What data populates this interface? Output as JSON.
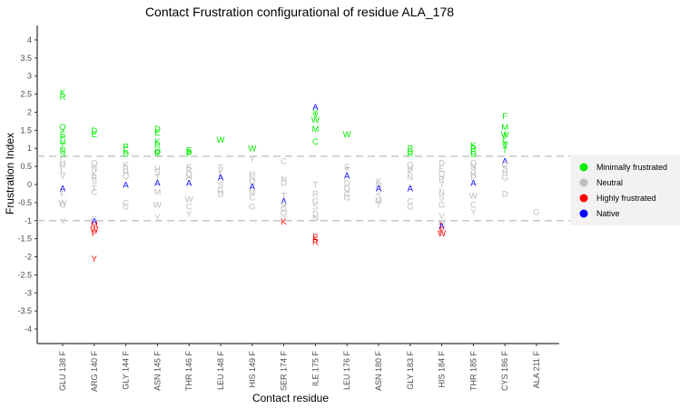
{
  "chart_data": {
    "type": "scatter",
    "title": "Contact Frustration configurational of residue ALA_178",
    "xlabel": "Contact residue",
    "ylabel": "Frustration Index",
    "ylim": [
      -4.4,
      4.4
    ],
    "yticks": [
      "4",
      "3.5",
      "3",
      "2.5",
      "2",
      "1.5",
      "1",
      "0.5",
      "0",
      "-0.5",
      "-1",
      "-1.5",
      "-2",
      "-2.5",
      "-3",
      "-3.5",
      "-4"
    ],
    "ytick_values": [
      4,
      3.5,
      3,
      2.5,
      2,
      1.5,
      1,
      0.5,
      0,
      -0.5,
      -1,
      -1.5,
      -2,
      -2.5,
      -3,
      -3.5,
      -4
    ],
    "categories": [
      "GLU 138 F",
      "ARG 140 F",
      "GLY 144 F",
      "ASN 145 F",
      "THR 146 F",
      "LEU 148 F",
      "HIS 149 F",
      "SER 174 F",
      "ILE 175 F",
      "LEU 176 F",
      "ASN 180 F",
      "GLY 183 F",
      "HIS 184 F",
      "THR 185 F",
      "CYS 186 F",
      "ALA 211 F"
    ],
    "reference_lines": [
      0.78,
      -1.0
    ],
    "grid": false,
    "legend_position": "right",
    "legend": [
      {
        "label": "Minimally frustrated",
        "color": "#00ee00"
      },
      {
        "label": "Neutral",
        "color": "#bebebe"
      },
      {
        "label": "Highly frustrated",
        "color": "#ff0000"
      },
      {
        "label": "Native",
        "color": "#0000ff"
      }
    ],
    "colors": {
      "minimal": "#00ee00",
      "neutral": "#bebebe",
      "high": "#ff0000",
      "native": "#0000ff"
    },
    "points": [
      {
        "x": 0,
        "y": 2.55,
        "t": "K",
        "c": "minimal"
      },
      {
        "x": 0,
        "y": 2.43,
        "t": "R",
        "c": "minimal"
      },
      {
        "x": 0,
        "y": 1.6,
        "t": "Q",
        "c": "minimal"
      },
      {
        "x": 0,
        "y": 1.4,
        "t": "E",
        "c": "minimal"
      },
      {
        "x": 0,
        "y": 1.32,
        "t": "P",
        "c": "minimal"
      },
      {
        "x": 0,
        "y": 1.2,
        "t": "H",
        "c": "minimal"
      },
      {
        "x": 0,
        "y": 1.08,
        "t": "T",
        "c": "minimal"
      },
      {
        "x": 0,
        "y": 0.95,
        "t": "N",
        "c": "minimal"
      },
      {
        "x": 0,
        "y": 0.85,
        "t": "S",
        "c": "minimal"
      },
      {
        "x": 0,
        "y": 0.7,
        "t": "C",
        "c": "neutral"
      },
      {
        "x": 0,
        "y": 0.55,
        "t": "M",
        "c": "neutral"
      },
      {
        "x": 0,
        "y": 0.4,
        "t": "L",
        "c": "neutral"
      },
      {
        "x": 0,
        "y": 0.25,
        "t": "V",
        "c": "neutral"
      },
      {
        "x": 0,
        "y": -0.1,
        "t": "A",
        "c": "native"
      },
      {
        "x": 0,
        "y": -0.25,
        "t": "F",
        "c": "neutral"
      },
      {
        "x": 0,
        "y": -0.5,
        "t": "W",
        "c": "neutral"
      },
      {
        "x": 0,
        "y": -0.55,
        "t": "G",
        "c": "neutral"
      },
      {
        "x": 0,
        "y": -1.0,
        "t": "Y",
        "c": "neutral"
      },
      {
        "x": 1,
        "y": 1.5,
        "t": "D",
        "c": "minimal"
      },
      {
        "x": 1,
        "y": 1.4,
        "t": "E",
        "c": "minimal"
      },
      {
        "x": 1,
        "y": 0.6,
        "t": "Q",
        "c": "neutral"
      },
      {
        "x": 1,
        "y": 0.45,
        "t": "N",
        "c": "neutral"
      },
      {
        "x": 1,
        "y": 0.3,
        "t": "K",
        "c": "neutral"
      },
      {
        "x": 1,
        "y": 0.2,
        "t": "R",
        "c": "neutral"
      },
      {
        "x": 1,
        "y": 0.1,
        "t": "S",
        "c": "neutral"
      },
      {
        "x": 1,
        "y": -0.1,
        "t": "T",
        "c": "neutral"
      },
      {
        "x": 1,
        "y": -0.2,
        "t": "C",
        "c": "neutral"
      },
      {
        "x": 1,
        "y": -0.95,
        "t": "G",
        "c": "neutral"
      },
      {
        "x": 1,
        "y": -1.0,
        "t": "A",
        "c": "native"
      },
      {
        "x": 1,
        "y": -1.1,
        "t": "M",
        "c": "high"
      },
      {
        "x": 1,
        "y": -1.25,
        "t": "W",
        "c": "high"
      },
      {
        "x": 1,
        "y": -1.35,
        "t": "F",
        "c": "high"
      },
      {
        "x": 1,
        "y": -2.05,
        "t": "Y",
        "c": "high"
      },
      {
        "x": 2,
        "y": 1.05,
        "t": "P",
        "c": "minimal"
      },
      {
        "x": 2,
        "y": 0.95,
        "t": "E",
        "c": "minimal"
      },
      {
        "x": 2,
        "y": 0.85,
        "t": "D",
        "c": "minimal"
      },
      {
        "x": 2,
        "y": 0.55,
        "t": "K",
        "c": "neutral"
      },
      {
        "x": 2,
        "y": 0.45,
        "t": "R",
        "c": "neutral"
      },
      {
        "x": 2,
        "y": 0.35,
        "t": "H",
        "c": "neutral"
      },
      {
        "x": 2,
        "y": 0.25,
        "t": "Q",
        "c": "neutral"
      },
      {
        "x": 2,
        "y": 0.0,
        "t": "A",
        "c": "native"
      },
      {
        "x": 2,
        "y": -0.5,
        "t": "C",
        "c": "neutral"
      },
      {
        "x": 2,
        "y": -0.6,
        "t": "G",
        "c": "neutral"
      },
      {
        "x": 3,
        "y": 1.55,
        "t": "D",
        "c": "minimal"
      },
      {
        "x": 3,
        "y": 1.45,
        "t": "E",
        "c": "minimal"
      },
      {
        "x": 3,
        "y": 1.2,
        "t": "K",
        "c": "minimal"
      },
      {
        "x": 3,
        "y": 1.1,
        "t": "R",
        "c": "minimal"
      },
      {
        "x": 3,
        "y": 0.92,
        "t": "Q",
        "c": "minimal"
      },
      {
        "x": 3,
        "y": 0.88,
        "t": "P",
        "c": "minimal"
      },
      {
        "x": 3,
        "y": 0.45,
        "t": "H",
        "c": "neutral"
      },
      {
        "x": 3,
        "y": 0.35,
        "t": "S",
        "c": "neutral"
      },
      {
        "x": 3,
        "y": 0.2,
        "t": "T",
        "c": "neutral"
      },
      {
        "x": 3,
        "y": 0.05,
        "t": "A",
        "c": "native"
      },
      {
        "x": 3,
        "y": -0.2,
        "t": "M",
        "c": "neutral"
      },
      {
        "x": 3,
        "y": -0.55,
        "t": "W",
        "c": "neutral"
      },
      {
        "x": 3,
        "y": -0.9,
        "t": "Y",
        "c": "neutral"
      },
      {
        "x": 4,
        "y": 0.95,
        "t": "E",
        "c": "minimal"
      },
      {
        "x": 4,
        "y": 0.9,
        "t": "D",
        "c": "minimal"
      },
      {
        "x": 4,
        "y": 0.85,
        "t": "P",
        "c": "minimal"
      },
      {
        "x": 4,
        "y": 0.5,
        "t": "K",
        "c": "neutral"
      },
      {
        "x": 4,
        "y": 0.4,
        "t": "R",
        "c": "neutral"
      },
      {
        "x": 4,
        "y": 0.3,
        "t": "Q",
        "c": "neutral"
      },
      {
        "x": 4,
        "y": 0.2,
        "t": "H",
        "c": "neutral"
      },
      {
        "x": 4,
        "y": 0.05,
        "t": "A",
        "c": "native"
      },
      {
        "x": 4,
        "y": -0.4,
        "t": "W",
        "c": "neutral"
      },
      {
        "x": 4,
        "y": -0.6,
        "t": "C",
        "c": "neutral"
      },
      {
        "x": 4,
        "y": -0.8,
        "t": "Y",
        "c": "neutral"
      },
      {
        "x": 5,
        "y": 1.25,
        "t": "W",
        "c": "minimal"
      },
      {
        "x": 5,
        "y": 0.5,
        "t": "Y",
        "c": "neutral"
      },
      {
        "x": 5,
        "y": 0.4,
        "t": "V",
        "c": "neutral"
      },
      {
        "x": 5,
        "y": 0.3,
        "t": "L",
        "c": "neutral"
      },
      {
        "x": 5,
        "y": 0.2,
        "t": "A",
        "c": "native"
      },
      {
        "x": 5,
        "y": 0.0,
        "t": "S",
        "c": "neutral"
      },
      {
        "x": 5,
        "y": -0.15,
        "t": "G",
        "c": "neutral"
      },
      {
        "x": 5,
        "y": -0.25,
        "t": "D",
        "c": "neutral"
      },
      {
        "x": 6,
        "y": 1.0,
        "t": "W",
        "c": "minimal"
      },
      {
        "x": 6,
        "y": 0.7,
        "t": "Y",
        "c": "neutral"
      },
      {
        "x": 6,
        "y": 0.3,
        "t": "H",
        "c": "neutral"
      },
      {
        "x": 6,
        "y": 0.2,
        "t": "N",
        "c": "neutral"
      },
      {
        "x": 6,
        "y": 0.1,
        "t": "Q",
        "c": "neutral"
      },
      {
        "x": 6,
        "y": -0.05,
        "t": "A",
        "c": "native"
      },
      {
        "x": 6,
        "y": -0.2,
        "t": "M",
        "c": "neutral"
      },
      {
        "x": 6,
        "y": -0.35,
        "t": "C",
        "c": "neutral"
      },
      {
        "x": 6,
        "y": -0.6,
        "t": "G",
        "c": "neutral"
      },
      {
        "x": 7,
        "y": 0.65,
        "t": "C",
        "c": "neutral"
      },
      {
        "x": 7,
        "y": 0.15,
        "t": "N",
        "c": "neutral"
      },
      {
        "x": 7,
        "y": 0.05,
        "t": "D",
        "c": "neutral"
      },
      {
        "x": 7,
        "y": -0.3,
        "t": "T",
        "c": "neutral"
      },
      {
        "x": 7,
        "y": -0.45,
        "t": "A",
        "c": "native"
      },
      {
        "x": 7,
        "y": -0.55,
        "t": "S",
        "c": "neutral"
      },
      {
        "x": 7,
        "y": -0.65,
        "t": "G",
        "c": "neutral"
      },
      {
        "x": 7,
        "y": -0.78,
        "t": "Q",
        "c": "neutral"
      },
      {
        "x": 7,
        "y": -1.02,
        "t": "K",
        "c": "high"
      },
      {
        "x": 8,
        "y": 2.15,
        "t": "A",
        "c": "native"
      },
      {
        "x": 8,
        "y": 2.0,
        "t": "Y",
        "c": "minimal"
      },
      {
        "x": 8,
        "y": 1.92,
        "t": "V",
        "c": "minimal"
      },
      {
        "x": 8,
        "y": 1.8,
        "t": "W",
        "c": "minimal"
      },
      {
        "x": 8,
        "y": 1.55,
        "t": "M",
        "c": "minimal"
      },
      {
        "x": 8,
        "y": 1.2,
        "t": "C",
        "c": "minimal"
      },
      {
        "x": 8,
        "y": 0.0,
        "t": "T",
        "c": "neutral"
      },
      {
        "x": 8,
        "y": -0.25,
        "t": "R",
        "c": "neutral"
      },
      {
        "x": 8,
        "y": -0.45,
        "t": "G",
        "c": "neutral"
      },
      {
        "x": 8,
        "y": -0.6,
        "t": "S",
        "c": "neutral"
      },
      {
        "x": 8,
        "y": -0.8,
        "t": "D",
        "c": "neutral"
      },
      {
        "x": 8,
        "y": -0.92,
        "t": "N",
        "c": "neutral"
      },
      {
        "x": 8,
        "y": -1.45,
        "t": "E",
        "c": "high"
      },
      {
        "x": 8,
        "y": -1.5,
        "t": "K",
        "c": "high"
      },
      {
        "x": 8,
        "y": -1.58,
        "t": "R",
        "c": "high"
      },
      {
        "x": 9,
        "y": 1.4,
        "t": "W",
        "c": "minimal"
      },
      {
        "x": 9,
        "y": 0.5,
        "t": "S",
        "c": "neutral"
      },
      {
        "x": 9,
        "y": 0.4,
        "t": "T",
        "c": "neutral"
      },
      {
        "x": 9,
        "y": 0.25,
        "t": "A",
        "c": "native"
      },
      {
        "x": 9,
        "y": 0.05,
        "t": "D",
        "c": "neutral"
      },
      {
        "x": 9,
        "y": -0.1,
        "t": "Q",
        "c": "neutral"
      },
      {
        "x": 9,
        "y": -0.25,
        "t": "C",
        "c": "neutral"
      },
      {
        "x": 9,
        "y": -0.35,
        "t": "G",
        "c": "neutral"
      },
      {
        "x": 10,
        "y": 0.1,
        "t": "K",
        "c": "neutral"
      },
      {
        "x": 10,
        "y": 0.0,
        "t": "N",
        "c": "neutral"
      },
      {
        "x": 10,
        "y": -0.1,
        "t": "A",
        "c": "native"
      },
      {
        "x": 10,
        "y": -0.3,
        "t": "S",
        "c": "neutral"
      },
      {
        "x": 10,
        "y": -0.45,
        "t": "M",
        "c": "neutral"
      },
      {
        "x": 10,
        "y": -0.55,
        "t": "T",
        "c": "neutral"
      },
      {
        "x": 11,
        "y": 1.0,
        "t": "P",
        "c": "minimal"
      },
      {
        "x": 11,
        "y": 0.92,
        "t": "D",
        "c": "minimal"
      },
      {
        "x": 11,
        "y": 0.85,
        "t": "R",
        "c": "minimal"
      },
      {
        "x": 11,
        "y": 0.55,
        "t": "Q",
        "c": "neutral"
      },
      {
        "x": 11,
        "y": 0.45,
        "t": "H",
        "c": "neutral"
      },
      {
        "x": 11,
        "y": 0.35,
        "t": "K",
        "c": "neutral"
      },
      {
        "x": 11,
        "y": 0.2,
        "t": "N",
        "c": "neutral"
      },
      {
        "x": 11,
        "y": -0.1,
        "t": "A",
        "c": "native"
      },
      {
        "x": 11,
        "y": -0.45,
        "t": "C",
        "c": "neutral"
      },
      {
        "x": 11,
        "y": -0.6,
        "t": "G",
        "c": "neutral"
      },
      {
        "x": 12,
        "y": 0.6,
        "t": "D",
        "c": "neutral"
      },
      {
        "x": 12,
        "y": 0.45,
        "t": "E",
        "c": "neutral"
      },
      {
        "x": 12,
        "y": 0.3,
        "t": "Q",
        "c": "neutral"
      },
      {
        "x": 12,
        "y": 0.15,
        "t": "R",
        "c": "neutral"
      },
      {
        "x": 12,
        "y": 0.0,
        "t": "T",
        "c": "neutral"
      },
      {
        "x": 12,
        "y": -0.2,
        "t": "N",
        "c": "neutral"
      },
      {
        "x": 12,
        "y": -0.35,
        "t": "S",
        "c": "neutral"
      },
      {
        "x": 12,
        "y": -0.55,
        "t": "G",
        "c": "neutral"
      },
      {
        "x": 12,
        "y": -0.85,
        "t": "V",
        "c": "neutral"
      },
      {
        "x": 12,
        "y": -1.05,
        "t": "M",
        "c": "neutral"
      },
      {
        "x": 12,
        "y": -1.1,
        "t": "L",
        "c": "high"
      },
      {
        "x": 12,
        "y": -1.15,
        "t": "A",
        "c": "native"
      },
      {
        "x": 12,
        "y": -1.25,
        "t": "F",
        "c": "high"
      },
      {
        "x": 12,
        "y": -1.35,
        "t": "W",
        "c": "high"
      },
      {
        "x": 13,
        "y": 1.1,
        "t": "K",
        "c": "minimal"
      },
      {
        "x": 13,
        "y": 1.0,
        "t": "R",
        "c": "minimal"
      },
      {
        "x": 13,
        "y": 0.92,
        "t": "E",
        "c": "minimal"
      },
      {
        "x": 13,
        "y": 0.85,
        "t": "D",
        "c": "minimal"
      },
      {
        "x": 13,
        "y": 0.6,
        "t": "Q",
        "c": "neutral"
      },
      {
        "x": 13,
        "y": 0.5,
        "t": "N",
        "c": "neutral"
      },
      {
        "x": 13,
        "y": 0.4,
        "t": "S",
        "c": "neutral"
      },
      {
        "x": 13,
        "y": 0.3,
        "t": "H",
        "c": "neutral"
      },
      {
        "x": 13,
        "y": 0.2,
        "t": "P",
        "c": "neutral"
      },
      {
        "x": 13,
        "y": 0.05,
        "t": "A",
        "c": "native"
      },
      {
        "x": 13,
        "y": -0.3,
        "t": "W",
        "c": "neutral"
      },
      {
        "x": 13,
        "y": -0.55,
        "t": "C",
        "c": "neutral"
      },
      {
        "x": 13,
        "y": -0.75,
        "t": "Y",
        "c": "neutral"
      },
      {
        "x": 14,
        "y": 1.9,
        "t": "F",
        "c": "minimal"
      },
      {
        "x": 14,
        "y": 1.6,
        "t": "M",
        "c": "minimal"
      },
      {
        "x": 14,
        "y": 1.4,
        "t": "W",
        "c": "minimal"
      },
      {
        "x": 14,
        "y": 1.35,
        "t": "I",
        "c": "minimal"
      },
      {
        "x": 14,
        "y": 1.25,
        "t": "L",
        "c": "minimal"
      },
      {
        "x": 14,
        "y": 1.15,
        "t": "Y",
        "c": "minimal"
      },
      {
        "x": 14,
        "y": 1.08,
        "t": "V",
        "c": "minimal"
      },
      {
        "x": 14,
        "y": 0.95,
        "t": "T",
        "c": "minimal"
      },
      {
        "x": 14,
        "y": 0.65,
        "t": "A",
        "c": "native"
      },
      {
        "x": 14,
        "y": 0.55,
        "t": "C",
        "c": "neutral"
      },
      {
        "x": 14,
        "y": 0.45,
        "t": "S",
        "c": "neutral"
      },
      {
        "x": 14,
        "y": 0.35,
        "t": "H",
        "c": "neutral"
      },
      {
        "x": 14,
        "y": 0.2,
        "t": "G",
        "c": "neutral"
      },
      {
        "x": 14,
        "y": -0.25,
        "t": "D",
        "c": "neutral"
      },
      {
        "x": 15,
        "y": -0.75,
        "t": "G",
        "c": "neutral"
      }
    ]
  }
}
